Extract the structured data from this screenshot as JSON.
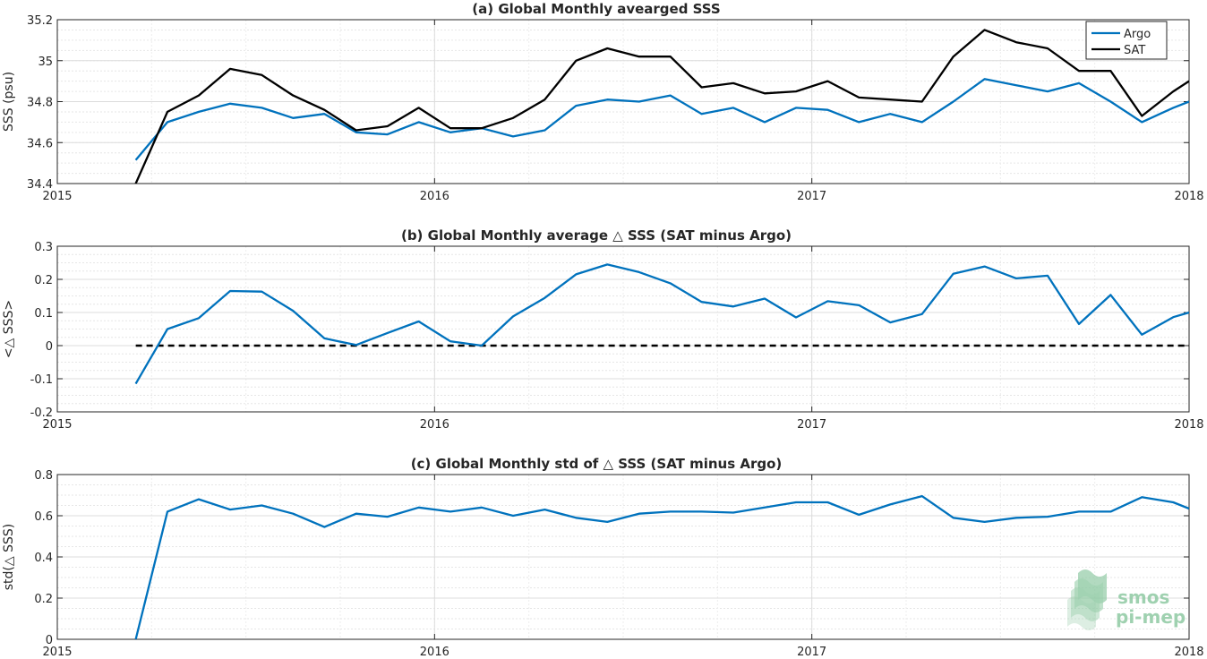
{
  "chart_data": [
    {
      "type": "line",
      "title": "(a) Global Monthly avearged SSS",
      "xlabel": "",
      "ylabel": "SSS (psu)",
      "xlim": [
        2015,
        2018
      ],
      "ylim": [
        34.4,
        35.2
      ],
      "x_ticks": [
        "2015",
        "2016",
        "2017",
        "2018"
      ],
      "y_ticks": [
        "34.4",
        "34.6",
        "34.8",
        "35",
        "35.2"
      ],
      "grid": true,
      "legend_position": "top-right",
      "x": [
        2015.208,
        2015.292,
        2015.375,
        2015.458,
        2015.542,
        2015.625,
        2015.708,
        2015.792,
        2015.875,
        2015.958,
        2016.042,
        2016.125,
        2016.208,
        2016.292,
        2016.375,
        2016.458,
        2016.542,
        2016.625,
        2016.708,
        2016.792,
        2016.875,
        2016.958,
        2017.042,
        2017.125,
        2017.208,
        2017.292,
        2017.375,
        2017.458,
        2017.542,
        2017.625,
        2017.708,
        2017.792,
        2017.875,
        2017.958,
        2018.0
      ],
      "series": [
        {
          "name": "Argo",
          "color": "#0072bd",
          "values": [
            34.515,
            34.7,
            34.75,
            34.79,
            34.77,
            34.72,
            34.74,
            34.65,
            34.64,
            34.7,
            34.65,
            34.67,
            34.63,
            34.66,
            34.78,
            34.81,
            34.8,
            34.83,
            34.74,
            34.77,
            34.7,
            34.77,
            34.76,
            34.7,
            34.74,
            34.7,
            34.8,
            34.91,
            34.88,
            34.85,
            34.89,
            34.8,
            34.7,
            34.77,
            34.8
          ]
        },
        {
          "name": "SAT",
          "color": "#000000",
          "values": [
            34.4,
            34.75,
            34.83,
            34.96,
            34.93,
            34.83,
            34.76,
            34.66,
            34.68,
            34.77,
            34.67,
            34.67,
            34.72,
            34.81,
            35.0,
            35.06,
            35.02,
            35.02,
            34.87,
            34.89,
            34.84,
            34.85,
            34.9,
            34.82,
            34.81,
            34.8,
            35.02,
            35.15,
            35.09,
            35.06,
            34.95,
            34.95,
            34.73,
            34.85,
            34.9
          ]
        }
      ]
    },
    {
      "type": "line",
      "title": "(b) Global Monthly average △ SSS (SAT minus Argo)",
      "xlabel": "",
      "ylabel": "<△ SSS>",
      "xlim": [
        2015,
        2018
      ],
      "ylim": [
        -0.2,
        0.3
      ],
      "x_ticks": [
        "2015",
        "2016",
        "2017",
        "2018"
      ],
      "y_ticks": [
        "-0.2",
        "-0.1",
        "0",
        "0.1",
        "0.2",
        "0.3"
      ],
      "grid": true,
      "x": [
        2015.208,
        2015.292,
        2015.375,
        2015.458,
        2015.542,
        2015.625,
        2015.708,
        2015.792,
        2015.875,
        2015.958,
        2016.042,
        2016.125,
        2016.208,
        2016.292,
        2016.375,
        2016.458,
        2016.542,
        2016.625,
        2016.708,
        2016.792,
        2016.875,
        2016.958,
        2017.042,
        2017.125,
        2017.208,
        2017.292,
        2017.375,
        2017.458,
        2017.542,
        2017.625,
        2017.708,
        2017.792,
        2017.875,
        2017.958,
        2018.0
      ],
      "series": [
        {
          "color": "#0072bd",
          "values": [
            -0.115,
            0.05,
            0.083,
            0.165,
            0.163,
            0.105,
            0.022,
            0.002,
            0.038,
            0.073,
            0.013,
            0.0,
            0.088,
            0.144,
            0.215,
            0.245,
            0.222,
            0.188,
            0.132,
            0.118,
            0.142,
            0.085,
            0.134,
            0.122,
            0.07,
            0.095,
            0.217,
            0.239,
            0.203,
            0.211,
            0.065,
            0.153,
            0.033,
            0.086,
            0.1
          ]
        }
      ],
      "reference_line": {
        "y": 0,
        "style": "dashed",
        "color": "#000000"
      }
    },
    {
      "type": "line",
      "title": "(c) Global Monthly std of △ SSS (SAT minus Argo)",
      "xlabel": "",
      "ylabel": "std(△ SSS)",
      "xlim": [
        2015,
        2018
      ],
      "ylim": [
        0,
        0.8
      ],
      "x_ticks": [
        "2015",
        "2016",
        "2017",
        "2018"
      ],
      "y_ticks": [
        "0",
        "0.2",
        "0.4",
        "0.6",
        "0.8"
      ],
      "grid": true,
      "x": [
        2015.208,
        2015.292,
        2015.375,
        2015.458,
        2015.542,
        2015.625,
        2015.708,
        2015.792,
        2015.875,
        2015.958,
        2016.042,
        2016.125,
        2016.208,
        2016.292,
        2016.375,
        2016.458,
        2016.542,
        2016.625,
        2016.708,
        2016.792,
        2016.875,
        2016.958,
        2017.042,
        2017.125,
        2017.208,
        2017.292,
        2017.375,
        2017.458,
        2017.542,
        2017.625,
        2017.708,
        2017.792,
        2017.875,
        2017.958,
        2018.0
      ],
      "series": [
        {
          "color": "#0072bd",
          "values": [
            0.0,
            0.62,
            0.68,
            0.63,
            0.65,
            0.61,
            0.545,
            0.61,
            0.595,
            0.64,
            0.62,
            0.64,
            0.6,
            0.63,
            0.59,
            0.57,
            0.61,
            0.62,
            0.62,
            0.615,
            0.64,
            0.665,
            0.665,
            0.605,
            0.655,
            0.695,
            0.59,
            0.57,
            0.59,
            0.595,
            0.62,
            0.62,
            0.69,
            0.665,
            0.635
          ]
        }
      ]
    }
  ],
  "logo": {
    "line1": "smos",
    "line2": "pi-mep",
    "color": "#8fc9a3"
  }
}
